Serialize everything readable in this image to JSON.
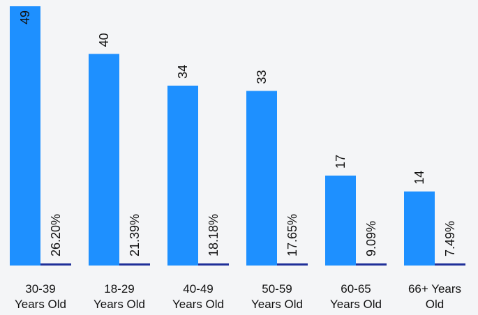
{
  "chart_data": {
    "type": "bar",
    "categories": [
      [
        "30-39",
        "Years Old"
      ],
      [
        "18-29",
        "Years Old"
      ],
      [
        "40-49",
        "Years Old"
      ],
      [
        "50-59",
        "Years Old"
      ],
      [
        "60-65",
        "Years Old"
      ],
      [
        "66+ Years",
        "Old"
      ]
    ],
    "series": [
      {
        "values": [
          49,
          40,
          34,
          33,
          17,
          14
        ],
        "labels": [
          "49",
          "40",
          "34",
          "33",
          "17",
          "14"
        ],
        "color": "#1e90ff"
      },
      {
        "values": [
          26.2,
          21.39,
          18.18,
          17.65,
          9.09,
          7.49
        ],
        "labels": [
          "26.20%",
          "21.39%",
          "18.18%",
          "17.65%",
          "9.09%",
          "7.49%"
        ],
        "color": "#1f2f99"
      }
    ],
    "title": "",
    "xlabel": "",
    "ylabel": "",
    "ylim": [
      0,
      49
    ],
    "grid": false,
    "legend": "none"
  }
}
